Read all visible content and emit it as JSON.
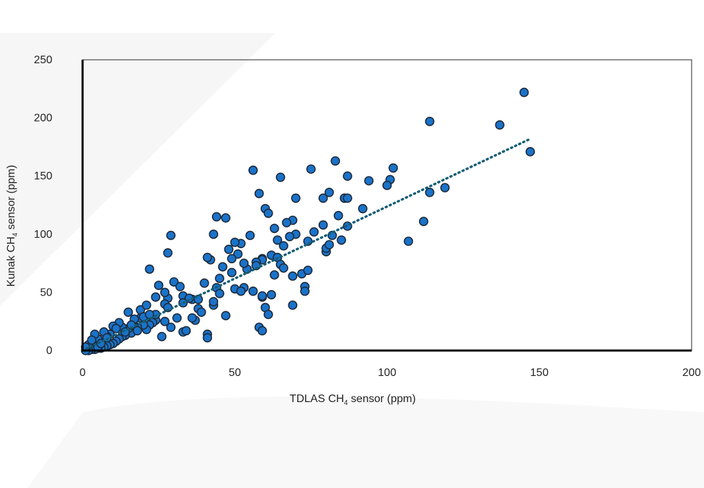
{
  "chart_data": {
    "type": "scatter",
    "title": "",
    "xlabel": {
      "prefix": "TDLAS CH",
      "sub": "4",
      "suffix": " sensor (ppm)"
    },
    "ylabel": {
      "prefix": "Kunak CH",
      "sub": "4",
      "suffix": " sensor (ppm)"
    },
    "xlim": [
      0,
      200
    ],
    "ylim": [
      0,
      250
    ],
    "x_ticks": [
      0,
      50,
      100,
      150,
      200
    ],
    "y_ticks": [
      0,
      50,
      100,
      150,
      200,
      250
    ],
    "grid": false,
    "legend": "none",
    "colors": {
      "point_fill": "#1a73c9",
      "point_stroke": "#1e2a3a",
      "trendline": "#155e75"
    },
    "trendline": {
      "style": "dotted",
      "x": [
        0,
        147
      ],
      "y": [
        0,
        182
      ]
    },
    "points": {
      "x": [
        145,
        147,
        114,
        137,
        114,
        119,
        112,
        107,
        102,
        101,
        100,
        94,
        92,
        87,
        86,
        87,
        84,
        86,
        87,
        82,
        80,
        81,
        83,
        79,
        80,
        85,
        75,
        79,
        76,
        74,
        73,
        72,
        70,
        69,
        70,
        68,
        66,
        67,
        65,
        64,
        63,
        62,
        60,
        61,
        59,
        58,
        59,
        57,
        56,
        55,
        54,
        53,
        52,
        51,
        50,
        49,
        48,
        46,
        47,
        45,
        44,
        43,
        42,
        41,
        40,
        56,
        64,
        74,
        81,
        58,
        73,
        69,
        69,
        65,
        66,
        59,
        57,
        63,
        49,
        50,
        53,
        41,
        41,
        47,
        29,
        28,
        22,
        43,
        43,
        38,
        37,
        59,
        59,
        60,
        62,
        61,
        33,
        34,
        30,
        28,
        27,
        25,
        24,
        23,
        22,
        21,
        20,
        19,
        18,
        17,
        16,
        15,
        14,
        13,
        12,
        11,
        10,
        9,
        8,
        7,
        6,
        5,
        4,
        3,
        2,
        1,
        26,
        31,
        36,
        36,
        39,
        27,
        33,
        44,
        19,
        21,
        24,
        15,
        17,
        13,
        9,
        35,
        32,
        12,
        24,
        20,
        18,
        27,
        29,
        10,
        8,
        14,
        11,
        6,
        5,
        3,
        2,
        4,
        7,
        1,
        16,
        22,
        28,
        33,
        38,
        45,
        52,
        3,
        5,
        6,
        8
      ],
      "y": [
        222,
        171,
        197,
        194,
        136,
        140,
        111,
        94,
        157,
        147,
        142,
        146,
        122,
        150,
        131,
        107,
        116,
        131,
        131,
        99,
        85,
        136,
        163,
        108,
        88,
        95,
        156,
        131,
        102,
        94,
        55,
        66,
        131,
        112,
        100,
        98,
        90,
        110,
        149,
        95,
        105,
        82,
        122,
        118,
        79,
        135,
        78,
        76,
        155,
        99,
        70,
        75,
        92,
        83,
        93,
        79,
        87,
        72,
        114,
        62,
        115,
        100,
        78,
        80,
        58,
        51,
        80,
        69,
        91,
        20,
        51,
        64,
        39,
        74,
        71,
        17,
        73,
        65,
        67,
        53,
        54,
        14,
        11,
        30,
        99,
        84,
        70,
        39,
        42,
        36,
        26,
        46,
        47,
        37,
        48,
        31,
        16,
        17,
        59,
        45,
        50,
        56,
        26,
        24,
        22,
        18,
        22,
        28,
        20,
        20,
        15,
        19,
        13,
        12,
        10,
        8,
        6,
        5,
        4,
        3,
        2,
        2,
        1,
        1,
        0,
        0,
        12,
        28,
        44,
        28,
        33,
        40,
        47,
        54,
        35,
        39,
        46,
        33,
        27,
        20,
        14,
        45,
        55,
        24,
        31,
        29,
        17,
        25,
        20,
        21,
        12,
        16,
        19,
        8,
        10,
        7,
        5,
        14,
        16,
        3,
        22,
        31,
        37,
        41,
        44,
        49,
        51,
        9,
        3,
        6,
        11
      ]
    }
  }
}
